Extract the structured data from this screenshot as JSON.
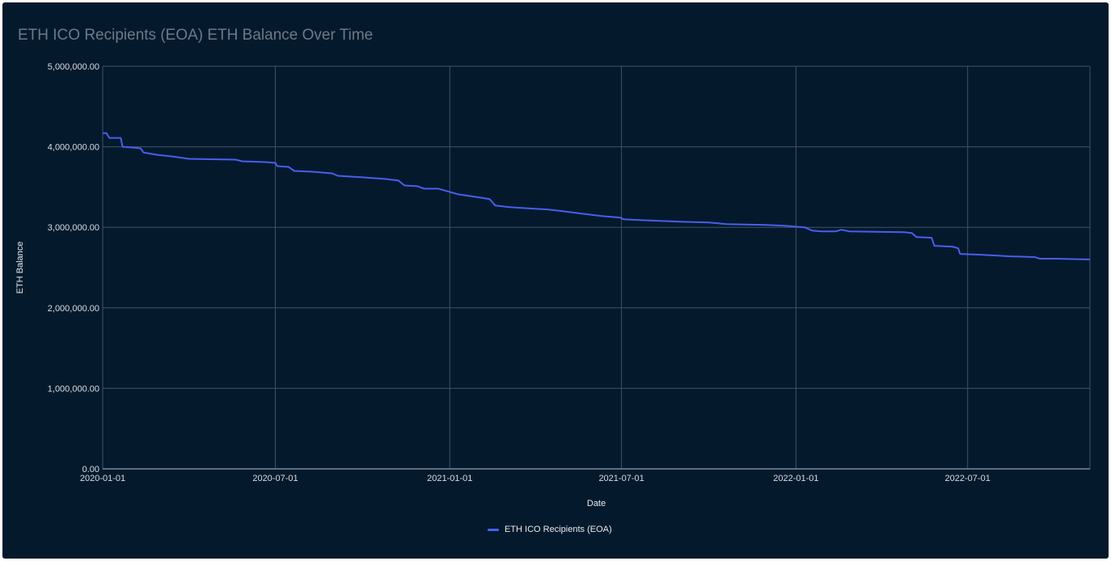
{
  "title": "ETH ICO Recipients (EOA) ETH Balance Over Time",
  "colors": {
    "background": "#041a2c",
    "series": "#4a5ef0"
  },
  "chart_data": {
    "type": "line",
    "title": "ETH ICO Recipients (EOA) ETH Balance Over Time",
    "xlabel": "Date",
    "ylabel": "ETH Balance",
    "xlim": [
      "2020-01-01",
      "2022-11-07"
    ],
    "ylim": [
      0,
      5000000
    ],
    "x_tick_labels": [
      "2020-01-01",
      "2020-07-01",
      "2021-01-01",
      "2021-07-01",
      "2022-01-01",
      "2022-07-01"
    ],
    "y_tick_labels": [
      "0.00",
      "1,000,000.00",
      "2,000,000.00",
      "3,000,000.00",
      "4,000,000.00",
      "5,000,000.00"
    ],
    "grid": true,
    "legend_position": "bottom-center",
    "series": [
      {
        "name": "ETH ICO Recipients (EOA)",
        "points": [
          [
            "2020-01-01",
            4170000
          ],
          [
            "2020-01-05",
            4170000
          ],
          [
            "2020-01-08",
            4110000
          ],
          [
            "2020-01-20",
            4110000
          ],
          [
            "2020-01-22",
            4000000
          ],
          [
            "2020-02-03",
            3990000
          ],
          [
            "2020-02-10",
            3980000
          ],
          [
            "2020-02-13",
            3930000
          ],
          [
            "2020-02-28",
            3900000
          ],
          [
            "2020-03-15",
            3880000
          ],
          [
            "2020-04-01",
            3850000
          ],
          [
            "2020-05-20",
            3840000
          ],
          [
            "2020-05-27",
            3820000
          ],
          [
            "2020-06-20",
            3810000
          ],
          [
            "2020-07-01",
            3800000
          ],
          [
            "2020-07-03",
            3760000
          ],
          [
            "2020-07-15",
            3750000
          ],
          [
            "2020-07-21",
            3700000
          ],
          [
            "2020-08-10",
            3690000
          ],
          [
            "2020-08-30",
            3670000
          ],
          [
            "2020-09-05",
            3640000
          ],
          [
            "2020-10-01",
            3620000
          ],
          [
            "2020-10-25",
            3600000
          ],
          [
            "2020-11-08",
            3580000
          ],
          [
            "2020-11-14",
            3520000
          ],
          [
            "2020-11-28",
            3510000
          ],
          [
            "2020-12-05",
            3480000
          ],
          [
            "2020-12-20",
            3480000
          ],
          [
            "2021-01-01",
            3440000
          ],
          [
            "2021-01-10",
            3410000
          ],
          [
            "2021-02-01",
            3370000
          ],
          [
            "2021-02-12",
            3350000
          ],
          [
            "2021-02-18",
            3270000
          ],
          [
            "2021-03-05",
            3250000
          ],
          [
            "2021-04-15",
            3220000
          ],
          [
            "2021-04-30",
            3200000
          ],
          [
            "2021-05-20",
            3170000
          ],
          [
            "2021-06-10",
            3140000
          ],
          [
            "2021-06-30",
            3120000
          ],
          [
            "2021-07-03",
            3100000
          ],
          [
            "2021-07-20",
            3090000
          ],
          [
            "2021-09-01",
            3070000
          ],
          [
            "2021-10-01",
            3060000
          ],
          [
            "2021-10-20",
            3040000
          ],
          [
            "2021-11-30",
            3030000
          ],
          [
            "2021-12-20",
            3020000
          ],
          [
            "2022-01-10",
            3000000
          ],
          [
            "2022-01-18",
            2960000
          ],
          [
            "2022-01-28",
            2950000
          ],
          [
            "2022-02-12",
            2950000
          ],
          [
            "2022-02-18",
            2970000
          ],
          [
            "2022-02-26",
            2950000
          ],
          [
            "2022-04-25",
            2940000
          ],
          [
            "2022-05-03",
            2930000
          ],
          [
            "2022-05-08",
            2880000
          ],
          [
            "2022-05-24",
            2870000
          ],
          [
            "2022-05-27",
            2770000
          ],
          [
            "2022-06-15",
            2760000
          ],
          [
            "2022-06-21",
            2740000
          ],
          [
            "2022-06-23",
            2670000
          ],
          [
            "2022-07-15",
            2660000
          ],
          [
            "2022-08-15",
            2640000
          ],
          [
            "2022-09-10",
            2630000
          ],
          [
            "2022-09-15",
            2610000
          ],
          [
            "2022-10-01",
            2610000
          ],
          [
            "2022-11-07",
            2600000
          ]
        ]
      }
    ]
  }
}
